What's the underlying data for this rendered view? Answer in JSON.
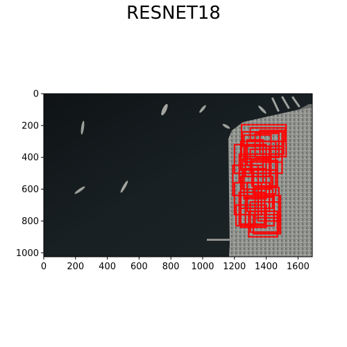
{
  "figure": {
    "title": "RESNET18"
  },
  "image_axes": {
    "x_ticks": [
      0,
      200,
      400,
      600,
      800,
      1000,
      1200,
      1400,
      1600
    ],
    "y_ticks": [
      0,
      200,
      400,
      600,
      800,
      1000
    ],
    "x_range": [
      0,
      1690
    ],
    "y_range": [
      1025,
      0
    ],
    "colors": {
      "water": "#161a1c",
      "land": "#8a8c88",
      "box": "#ff0000"
    }
  },
  "detections": [
    [
      1245,
      195,
      1525,
      395
    ],
    [
      1250,
      240,
      1500,
      330
    ],
    [
      1260,
      260,
      1430,
      430
    ],
    [
      1300,
      215,
      1520,
      300
    ],
    [
      1330,
      250,
      1480,
      400
    ],
    [
      1360,
      230,
      1510,
      380
    ],
    [
      1240,
      300,
      1460,
      480
    ],
    [
      1200,
      320,
      1400,
      500
    ],
    [
      1270,
      330,
      1420,
      520
    ],
    [
      1300,
      350,
      1500,
      500
    ],
    [
      1230,
      380,
      1380,
      560
    ],
    [
      1250,
      410,
      1430,
      600
    ],
    [
      1310,
      420,
      1470,
      580
    ],
    [
      1190,
      450,
      1350,
      640
    ],
    [
      1260,
      470,
      1400,
      660
    ],
    [
      1320,
      480,
      1460,
      630
    ],
    [
      1240,
      520,
      1440,
      720
    ],
    [
      1200,
      560,
      1370,
      760
    ],
    [
      1280,
      560,
      1420,
      740
    ],
    [
      1330,
      590,
      1480,
      780
    ],
    [
      1230,
      620,
      1390,
      820
    ],
    [
      1270,
      650,
      1450,
      830
    ],
    [
      1300,
      680,
      1480,
      870
    ],
    [
      1240,
      700,
      1400,
      840
    ],
    [
      1350,
      640,
      1490,
      800
    ],
    [
      1290,
      740,
      1470,
      900
    ],
    [
      1320,
      760,
      1490,
      880
    ],
    [
      1210,
      700,
      1330,
      830
    ],
    [
      1380,
      300,
      1500,
      430
    ],
    [
      1280,
      290,
      1380,
      450
    ]
  ]
}
